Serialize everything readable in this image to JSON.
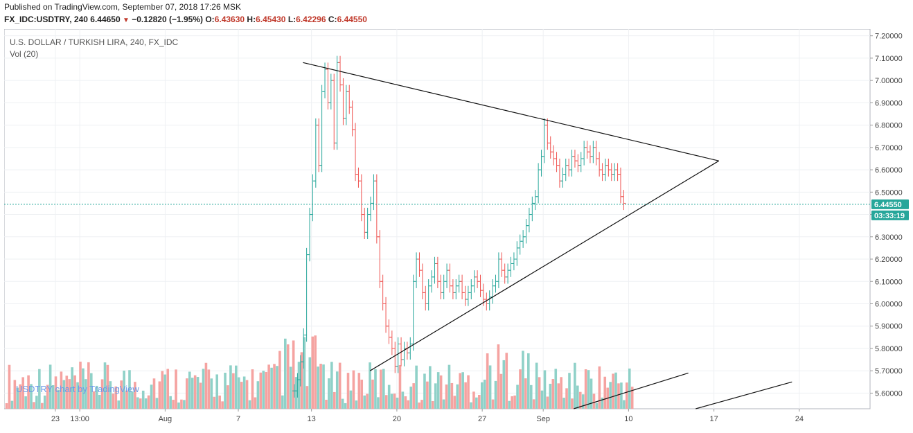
{
  "header": {
    "published_line": "Published on TradingView.com, September 07, 2018 17:26 MSK",
    "symbol": "FX_IDC:USDTRY, 240",
    "last": "6.44650",
    "change": "−0.12820 (−1.95%)",
    "o_label": "O:",
    "o_value": "6.43630",
    "h_label": "H:",
    "h_value": "6.45430",
    "l_label": "L:",
    "l_value": "6.42296",
    "c_label": "C:",
    "c_value": "6.44550"
  },
  "legend": {
    "instrument": "U.S. DOLLAR / TURKISH LIRA, 240, FX_IDC",
    "volume": "Vol (20)"
  },
  "watermark": "USDTRY chart by TradingView",
  "price_tag": {
    "price": "6.44550",
    "countdown": "03:33:19"
  },
  "colors": {
    "up": "#26a69a",
    "down": "#ef5350",
    "vol_up": "#8fd1c8",
    "vol_down": "#f5a3a1",
    "tag": "#26a69a"
  },
  "chart_data": {
    "type": "line",
    "title": "U.S. DOLLAR / TURKISH LIRA, 240, FX_IDC",
    "xlabel": "",
    "ylabel": "",
    "ylim": [
      5.53,
      7.23
    ],
    "y_ticks": [
      "7.20000",
      "7.10000",
      "7.00000",
      "6.90000",
      "6.80000",
      "6.70000",
      "6.60000",
      "6.50000",
      "6.40000",
      "6.30000",
      "6.20000",
      "6.10000",
      "6.00000",
      "5.90000",
      "5.80000",
      "5.70000",
      "5.60000"
    ],
    "x_tick_labels": [
      {
        "label": "23",
        "day": 23
      },
      {
        "label": "13:00",
        "day": 25
      },
      {
        "label": "Aug",
        "day": 32
      },
      {
        "label": "7",
        "day": 38
      },
      {
        "label": "13",
        "day": 44
      },
      {
        "label": "20",
        "day": 51
      },
      {
        "label": "27",
        "day": 58
      },
      {
        "label": "Sep",
        "day": 63
      },
      {
        "label": "10",
        "day": 70
      },
      {
        "label": "17",
        "day": 77
      },
      {
        "label": "24",
        "day": 84
      }
    ],
    "x_range_days": [
      18.8,
      89.8
    ],
    "last_price": 6.4455,
    "series": [
      {
        "values": [
          [
            10.9,
            5.61
          ],
          [
            11.0,
            5.66
          ],
          [
            11.1,
            5.74
          ],
          [
            11.3,
            5.86
          ],
          [
            11.5,
            6.22
          ],
          [
            11.7,
            6.4
          ],
          [
            11.9,
            6.55
          ],
          [
            12.1,
            6.8
          ],
          [
            12.3,
            6.62
          ],
          [
            12.5,
            6.95
          ],
          [
            12.7,
            7.05
          ],
          [
            12.9,
            6.9
          ],
          [
            13.1,
            7.0
          ],
          [
            13.3,
            6.72
          ],
          [
            13.5,
            7.08
          ],
          [
            13.7,
            6.98
          ],
          [
            13.9,
            6.83
          ],
          [
            14.1,
            6.95
          ],
          [
            14.3,
            6.88
          ],
          [
            14.5,
            6.78
          ],
          [
            14.7,
            6.58
          ],
          [
            14.9,
            6.55
          ],
          [
            15.1,
            6.4
          ],
          [
            15.3,
            6.32
          ],
          [
            15.5,
            6.4
          ],
          [
            15.7,
            6.45
          ],
          [
            15.9,
            6.55
          ],
          [
            16.1,
            6.3
          ],
          [
            16.3,
            6.1
          ],
          [
            16.5,
            6.0
          ],
          [
            16.7,
            5.9
          ],
          [
            16.9,
            5.85
          ],
          [
            17.1,
            5.8
          ],
          [
            17.3,
            5.72
          ],
          [
            17.5,
            5.82
          ],
          [
            17.7,
            5.75
          ],
          [
            17.9,
            5.8
          ],
          [
            18.1,
            5.78
          ],
          [
            18.3,
            5.82
          ],
          [
            18.5,
            6.1
          ],
          [
            18.7,
            6.2
          ],
          [
            18.9,
            6.15
          ],
          [
            19.1,
            6.05
          ],
          [
            19.3,
            6.0
          ],
          [
            19.5,
            6.08
          ],
          [
            19.7,
            6.12
          ],
          [
            19.9,
            6.18
          ],
          [
            20.1,
            6.1
          ],
          [
            20.3,
            6.05
          ],
          [
            20.5,
            6.1
          ],
          [
            20.7,
            6.15
          ],
          [
            20.9,
            6.08
          ],
          [
            21.1,
            6.05
          ],
          [
            21.3,
            6.08
          ],
          [
            21.5,
            6.1
          ],
          [
            21.7,
            6.05
          ],
          [
            21.9,
            6.02
          ],
          [
            22.1,
            6.05
          ],
          [
            22.3,
            6.08
          ],
          [
            22.5,
            6.12
          ],
          [
            22.7,
            6.1
          ],
          [
            22.9,
            6.06
          ],
          [
            23.1,
            6.02
          ],
          [
            23.3,
            6.0
          ],
          [
            23.5,
            6.03
          ],
          [
            23.7,
            6.08
          ],
          [
            23.9,
            6.1
          ],
          [
            24.1,
            6.2
          ],
          [
            24.3,
            6.15
          ],
          [
            24.5,
            6.12
          ],
          [
            24.7,
            6.15
          ],
          [
            24.9,
            6.18
          ],
          [
            25.1,
            6.2
          ],
          [
            25.3,
            6.25
          ],
          [
            25.5,
            6.28
          ],
          [
            25.7,
            6.3
          ],
          [
            25.9,
            6.35
          ],
          [
            26.1,
            6.4
          ],
          [
            26.3,
            6.45
          ],
          [
            26.5,
            6.48
          ],
          [
            26.7,
            6.6
          ],
          [
            26.9,
            6.66
          ],
          [
            27.1,
            6.8
          ],
          [
            27.3,
            6.72
          ],
          [
            27.5,
            6.68
          ],
          [
            27.7,
            6.65
          ],
          [
            27.9,
            6.62
          ],
          [
            28.1,
            6.55
          ],
          [
            28.3,
            6.58
          ],
          [
            28.5,
            6.62
          ],
          [
            28.7,
            6.6
          ],
          [
            28.9,
            6.66
          ],
          [
            29.1,
            6.64
          ],
          [
            29.3,
            6.62
          ],
          [
            29.5,
            6.65
          ],
          [
            29.7,
            6.7
          ],
          [
            29.9,
            6.68
          ],
          [
            30.1,
            6.66
          ],
          [
            30.3,
            6.7
          ],
          [
            30.5,
            6.65
          ],
          [
            30.7,
            6.6
          ],
          [
            30.9,
            6.58
          ],
          [
            31.1,
            6.62
          ],
          [
            31.3,
            6.6
          ],
          [
            31.5,
            6.58
          ],
          [
            31.7,
            6.6
          ],
          [
            31.9,
            6.58
          ],
          [
            32.1,
            6.48
          ],
          [
            32.3,
            6.45
          ]
        ]
      }
    ],
    "trendlines": [
      {
        "from": [
          43.3,
          7.08
        ],
        "to": [
          77.4,
          6.64
        ]
      },
      {
        "from": [
          48.8,
          5.7
        ],
        "to": [
          77.4,
          6.64
        ]
      },
      {
        "from": [
          65.5,
          5.53
        ],
        "to": [
          74.9,
          5.69
        ]
      },
      {
        "from": [
          75.5,
          5.53
        ],
        "to": [
          83.4,
          5.65
        ]
      }
    ],
    "volume": {
      "name": "Vol (20)",
      "max": 100
    }
  }
}
